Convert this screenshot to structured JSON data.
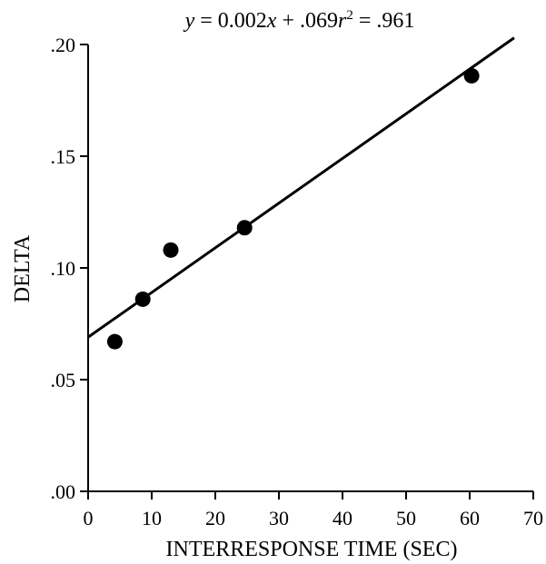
{
  "chart_data": {
    "type": "scatter",
    "title": "",
    "equation": {
      "y_var": "y",
      "eq_rest": " = 0.002",
      "x_var": "x",
      "intercept_part": " + .069",
      "r_var": "r",
      "r_exp": "2",
      "r_value": " = .961"
    },
    "xlabel": "INTERRESPONSE TIME (SEC)",
    "ylabel": "DELTA",
    "xlim": [
      0,
      70
    ],
    "ylim": [
      0,
      0.2
    ],
    "x_ticks": [
      {
        "value": 0,
        "label": "0"
      },
      {
        "value": 10,
        "label": "10"
      },
      {
        "value": 20,
        "label": "20"
      },
      {
        "value": 30,
        "label": "30"
      },
      {
        "value": 40,
        "label": "40"
      },
      {
        "value": 50,
        "label": "50"
      },
      {
        "value": 60,
        "label": "60"
      },
      {
        "value": 70,
        "label": "70"
      }
    ],
    "y_ticks": [
      {
        "value": 0.0,
        "label": ".00"
      },
      {
        "value": 0.05,
        "label": ".05"
      },
      {
        "value": 0.1,
        "label": ".10"
      },
      {
        "value": 0.15,
        "label": ".15"
      },
      {
        "value": 0.2,
        "label": ".20"
      }
    ],
    "points": [
      {
        "x": 4.2,
        "y": 0.067
      },
      {
        "x": 8.6,
        "y": 0.086
      },
      {
        "x": 13.0,
        "y": 0.108
      },
      {
        "x": 24.6,
        "y": 0.118
      },
      {
        "x": 60.3,
        "y": 0.186
      }
    ],
    "fit_line": {
      "slope": 0.002,
      "intercept": 0.069,
      "x_start": 0,
      "x_end": 67
    },
    "grid": false
  }
}
